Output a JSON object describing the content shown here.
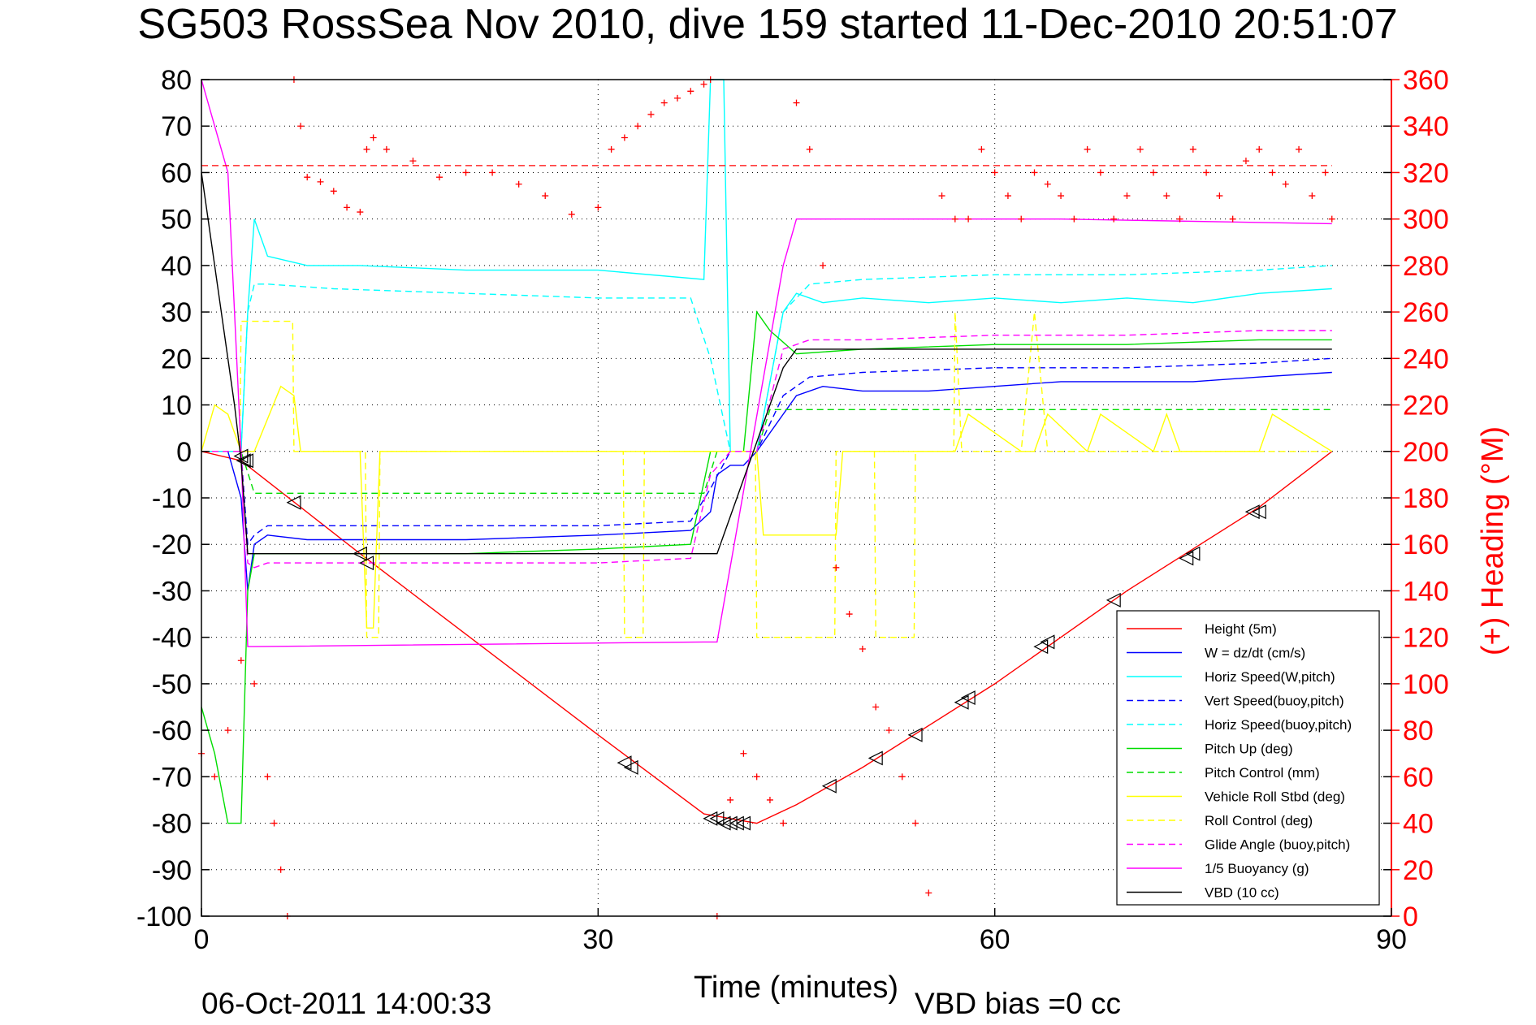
{
  "title": "SG503 RossSea Nov 2010, dive 159 started 11-Dec-2010 20:51:07",
  "footer_date": "06-Oct-2011 14:00:33",
  "vbd_bias": "VBD bias =0 cc",
  "chart_data": {
    "type": "line",
    "xlabel": "Time (minutes)",
    "ylabel_right": "(+) Heading (°M)",
    "xlim": [
      0,
      90
    ],
    "ylim": [
      -100,
      80
    ],
    "y2lim": [
      0,
      360
    ],
    "xticks": [
      "0",
      "30",
      "60",
      "90"
    ],
    "xtick_values": [
      0,
      30,
      60,
      90
    ],
    "yticks": [
      "80",
      "70",
      "60",
      "50",
      "40",
      "30",
      "20",
      "10",
      "0",
      "-10",
      "-20",
      "-30",
      "-40",
      "-50",
      "-60",
      "-70",
      "-80",
      "-90",
      "-100"
    ],
    "ytick_values": [
      80,
      70,
      60,
      50,
      40,
      30,
      20,
      10,
      0,
      -10,
      -20,
      -30,
      -40,
      -50,
      -60,
      -70,
      -80,
      -90,
      -100
    ],
    "y2ticks": [
      "360",
      "340",
      "320",
      "300",
      "280",
      "260",
      "240",
      "220",
      "200",
      "180",
      "160",
      "140",
      "120",
      "100",
      "80",
      "60",
      "40",
      "20",
      "0"
    ],
    "y2tick_values": [
      360,
      340,
      320,
      300,
      280,
      260,
      240,
      220,
      200,
      180,
      160,
      140,
      120,
      100,
      80,
      60,
      40,
      20,
      0
    ],
    "grid": "dotted",
    "legend_position": "bottom-right",
    "legend": [
      {
        "label": "Height (5m)",
        "color": "#ff0000",
        "dash": "solid"
      },
      {
        "label": "W = dz/dt (cm/s)",
        "color": "#0000ff",
        "dash": "solid"
      },
      {
        "label": "Horiz Speed(W,pitch)",
        "color": "#00ffff",
        "dash": "solid"
      },
      {
        "label": "Vert Speed(buoy,pitch)",
        "color": "#0000ff",
        "dash": "dashed"
      },
      {
        "label": "Horiz Speed(buoy,pitch)",
        "color": "#00ffff",
        "dash": "dashed"
      },
      {
        "label": "Pitch Up (deg)",
        "color": "#00dd00",
        "dash": "solid"
      },
      {
        "label": "Pitch Control (mm)",
        "color": "#00dd00",
        "dash": "dashed"
      },
      {
        "label": "Vehicle Roll Stbd (deg)",
        "color": "#ffff00",
        "dash": "solid"
      },
      {
        "label": "Roll Control (deg)",
        "color": "#ffff00",
        "dash": "dashed"
      },
      {
        "label": "Glide Angle (buoy,pitch)",
        "color": "#ff00ff",
        "dash": "dashed"
      },
      {
        "label": "1/5 Buoyancy (g)",
        "color": "#ff00ff",
        "dash": "solid"
      },
      {
        "label": "VBD (10 cc)",
        "color": "#000000",
        "dash": "solid"
      }
    ],
    "series": [
      {
        "key": "height",
        "color": "#ff0000",
        "dash": "solid",
        "x": [
          0,
          3,
          12,
          30,
          38,
          40,
          42,
          45,
          50,
          60,
          70,
          80,
          85.5
        ],
        "y": [
          0,
          -2,
          -22,
          -61,
          -78,
          -79,
          -80,
          -76,
          -68,
          -50,
          -30,
          -12,
          0
        ]
      },
      {
        "key": "w",
        "color": "#0000ff",
        "dash": "solid",
        "x": [
          0,
          2,
          3,
          3.5,
          4,
          5,
          8,
          12,
          20,
          30,
          37,
          38.5,
          39,
          40,
          41,
          42,
          44,
          45,
          47,
          50,
          55,
          60,
          65,
          70,
          75,
          80,
          85.5
        ],
        "y": [
          0,
          0,
          -10,
          -30,
          -20,
          -18,
          -19,
          -19,
          -19,
          -18,
          -17,
          -13,
          -5,
          -3,
          -3,
          0,
          8,
          12,
          14,
          13,
          13,
          14,
          15,
          15,
          15,
          16,
          17
        ]
      },
      {
        "key": "horiz_w",
        "color": "#00ffff",
        "dash": "solid",
        "x": [
          0,
          3,
          3.5,
          4,
          5,
          8,
          12,
          20,
          30,
          38,
          38.5,
          38.8,
          39.5,
          40,
          41,
          42,
          44,
          45,
          47,
          50,
          55,
          60,
          65,
          70,
          75,
          80,
          85.5
        ],
        "y": [
          0,
          0,
          30,
          50,
          42,
          40,
          40,
          39,
          39,
          37,
          80,
          80,
          80,
          0,
          0,
          0,
          30,
          34,
          32,
          33,
          32,
          33,
          32,
          33,
          32,
          34,
          35
        ]
      },
      {
        "key": "vert_buoy",
        "color": "#0000ff",
        "dash": "dashed",
        "x": [
          0,
          3,
          3.5,
          4,
          5,
          10,
          20,
          30,
          37,
          38.5,
          40,
          42,
          44,
          46,
          50,
          60,
          70,
          80,
          85.5
        ],
        "y": [
          0,
          0,
          -20,
          -18,
          -16,
          -16,
          -16,
          -16,
          -15,
          -8,
          0,
          0,
          12,
          16,
          17,
          18,
          18,
          19,
          20
        ]
      },
      {
        "key": "horiz_buoy",
        "color": "#00ffff",
        "dash": "dashed",
        "x": [
          0,
          3,
          3.5,
          4,
          5,
          10,
          20,
          30,
          37,
          38.5,
          40,
          42,
          44,
          46,
          50,
          60,
          70,
          80,
          85.5
        ],
        "y": [
          0,
          0,
          30,
          36,
          36,
          35,
          34,
          33,
          33,
          20,
          0,
          0,
          30,
          36,
          37,
          38,
          38,
          39,
          40
        ]
      },
      {
        "key": "pitch_up",
        "color": "#00dd00",
        "dash": "solid",
        "x": [
          0,
          1,
          2,
          3,
          3.5,
          4,
          5,
          10,
          20,
          30,
          37,
          38.5,
          39.5,
          40,
          41,
          42,
          43,
          45,
          50,
          60,
          70,
          80,
          85.5
        ],
        "y": [
          -55,
          -65,
          -80,
          -80,
          -30,
          -22,
          -22,
          -22,
          -22,
          -21,
          -20,
          0,
          0,
          0,
          0,
          30,
          26,
          21,
          22,
          23,
          23,
          24,
          24
        ]
      },
      {
        "key": "pitch_control",
        "color": "#00dd00",
        "dash": "dashed",
        "x": [
          0,
          3,
          4,
          38,
          39,
          42,
          43,
          85.5
        ],
        "y": [
          0,
          0,
          -9,
          -9,
          0,
          0,
          9,
          9
        ]
      },
      {
        "key": "roll_stbd",
        "color": "#ffff00",
        "dash": "solid",
        "x": [
          0,
          1,
          2,
          3,
          4,
          6,
          7,
          7.5,
          12,
          12.5,
          13,
          13.5,
          30,
          32,
          33,
          38,
          42,
          42.5,
          43,
          47,
          48,
          48.5,
          52,
          53,
          54,
          57,
          58,
          62,
          63,
          64,
          67,
          68,
          72,
          73,
          74,
          75,
          80,
          81,
          85.5
        ],
        "y": [
          0,
          10,
          8,
          0,
          0,
          14,
          12,
          0,
          0,
          -38,
          -38,
          0,
          0,
          0,
          0,
          0,
          0,
          -18,
          -18,
          -18,
          -18,
          0,
          0,
          0,
          0,
          0,
          8,
          0,
          0,
          8,
          0,
          8,
          0,
          8,
          0,
          0,
          0,
          8,
          0
        ]
      },
      {
        "key": "roll_control",
        "color": "#ffff00",
        "dash": "dashed",
        "x": [
          0,
          2.9,
          3,
          6.9,
          7,
          12.4,
          12.5,
          13.4,
          13.5,
          31.9,
          32,
          33.4,
          33.5,
          41.9,
          42,
          44,
          47.9,
          48,
          50.9,
          51,
          53.9,
          54,
          56.9,
          57,
          57.5,
          58,
          60,
          62,
          63,
          64,
          65,
          85.5
        ],
        "y": [
          0,
          0,
          28,
          28,
          0,
          0,
          -40,
          -40,
          0,
          0,
          -40,
          -40,
          0,
          0,
          -40,
          -40,
          -40,
          0,
          0,
          -40,
          -40,
          0,
          0,
          30,
          0,
          0,
          0,
          0,
          30,
          0,
          0,
          0
        ]
      },
      {
        "key": "glide_angle",
        "color": "#ff00ff",
        "dash": "dashed",
        "x": [
          0,
          3,
          3.5,
          4,
          5,
          10,
          20,
          30,
          37,
          38.5,
          40,
          42,
          44,
          46,
          50,
          60,
          70,
          80,
          85.5
        ],
        "y": [
          0,
          0,
          -24,
          -25,
          -24,
          -24,
          -24,
          -24,
          -23,
          -5,
          0,
          0,
          22,
          24,
          24,
          25,
          25,
          26,
          26
        ]
      },
      {
        "key": "buoyancy",
        "color": "#ff00ff",
        "dash": "solid",
        "x": [
          0,
          2,
          3,
          3.5,
          4,
          38,
          39,
          44,
          45,
          55,
          65,
          85.5
        ],
        "y": [
          80,
          60,
          0,
          -42,
          -42,
          -41,
          -41,
          40,
          50,
          50,
          50,
          49
        ]
      },
      {
        "key": "vbd",
        "color": "#000000",
        "dash": "solid",
        "x": [
          0,
          2.5,
          3,
          3.5,
          4,
          38,
          39,
          44,
          45,
          85.5
        ],
        "y": [
          60,
          10,
          -2,
          -22,
          -22,
          -22,
          -22,
          18,
          22,
          22
        ]
      }
    ],
    "heading": {
      "color": "#ff0000",
      "marker": "+",
      "axis": "right",
      "mean": 323,
      "points_x": [
        0,
        1,
        2,
        3,
        4,
        5,
        5.5,
        6,
        6.5,
        7,
        7.5,
        8,
        9,
        10,
        11,
        12,
        12.5,
        13,
        14,
        16,
        18,
        20,
        22,
        24,
        26,
        28,
        30,
        31,
        32,
        33,
        34,
        35,
        36,
        37,
        38,
        38.5,
        39,
        40,
        41,
        42,
        43,
        44,
        45,
        46,
        47,
        48,
        49,
        50,
        51,
        52,
        53,
        54,
        55,
        56,
        57,
        58,
        59,
        60,
        61,
        62,
        63,
        64,
        65,
        66,
        67,
        68,
        69,
        70,
        71,
        72,
        73,
        74,
        75,
        76,
        77,
        78,
        79,
        80,
        81,
        82,
        83,
        84,
        85,
        85.5
      ],
      "points_y": [
        70,
        60,
        80,
        110,
        100,
        60,
        40,
        20,
        0,
        360,
        340,
        318,
        316,
        312,
        305,
        303,
        330,
        335,
        330,
        325,
        318,
        320,
        320,
        315,
        310,
        302,
        305,
        330,
        335,
        340,
        345,
        350,
        352,
        355,
        358,
        360,
        0,
        50,
        70,
        60,
        50,
        40,
        350,
        330,
        280,
        150,
        130,
        115,
        90,
        80,
        60,
        40,
        10,
        310,
        300,
        300,
        330,
        320,
        310,
        300,
        320,
        315,
        310,
        300,
        330,
        320,
        300,
        310,
        330,
        320,
        310,
        300,
        330,
        320,
        310,
        300,
        325,
        330,
        320,
        315,
        330,
        310,
        320,
        300
      ]
    },
    "triangles": {
      "x": [
        3,
        3.2,
        3.4,
        7,
        12,
        12.5,
        32,
        32.5,
        38.5,
        39,
        39.5,
        40,
        40.5,
        41,
        47.5,
        51,
        54,
        57.5,
        58,
        63.5,
        64,
        69,
        74.5,
        75,
        79.5,
        80
      ],
      "y": [
        -1,
        -2,
        -2,
        -11,
        -22,
        -24,
        -67,
        -68,
        -79,
        -79,
        -80,
        -80,
        -80,
        -80,
        -72,
        -66,
        -61,
        -54,
        -53,
        -42,
        -41,
        -32,
        -23,
        -22,
        -13,
        -13
      ]
    }
  }
}
